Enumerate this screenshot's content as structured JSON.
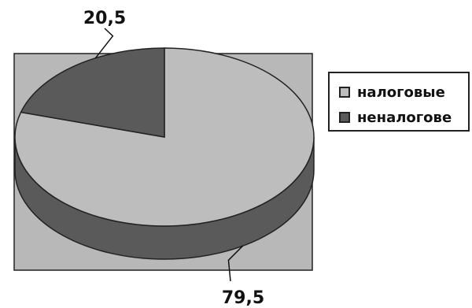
{
  "chart_data": {
    "type": "pie",
    "title": "",
    "categories": [
      "налоговые",
      "неналогове"
    ],
    "values": [
      79.5,
      20.5
    ],
    "data_labels": [
      "79,5",
      "20,5"
    ],
    "colors": [
      "#bdbdbd",
      "#5a5a5a"
    ],
    "background_color": "#b8b8b8",
    "style": "3d",
    "legend_position": "right"
  }
}
